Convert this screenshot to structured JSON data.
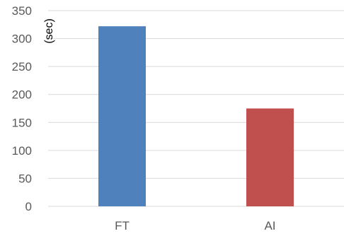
{
  "chart_data": {
    "type": "bar",
    "categories": [
      "FT",
      "AI"
    ],
    "values": [
      322,
      175
    ],
    "colors": [
      "#4F81BD",
      "#C0504D"
    ],
    "ylabel": "(sec)",
    "ylim": [
      0,
      350
    ],
    "yticks": [
      "0",
      "50",
      "100",
      "150",
      "200",
      "250",
      "300",
      "350"
    ],
    "grid": true
  }
}
